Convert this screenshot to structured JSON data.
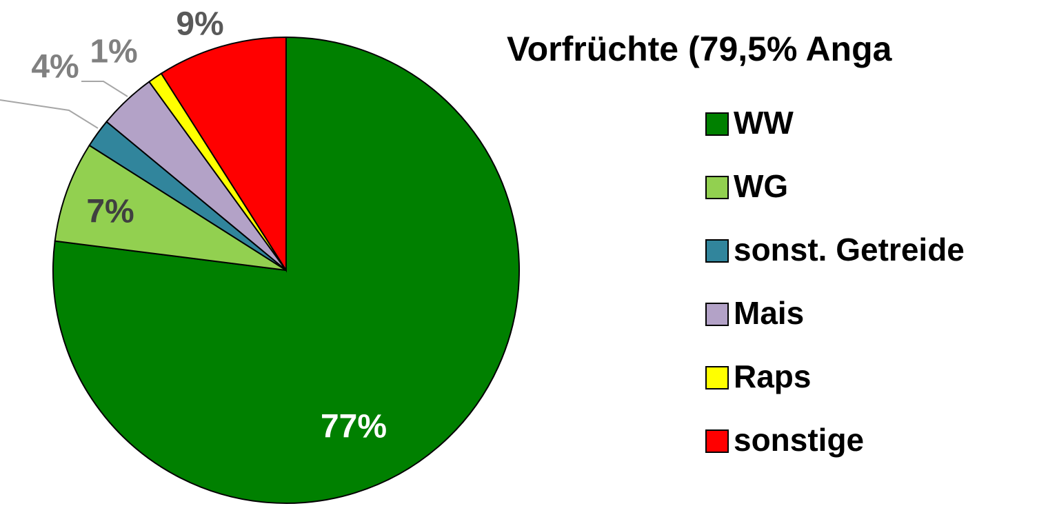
{
  "chart_data": {
    "type": "pie",
    "title": "Vorfrüchte (79,5% Anga",
    "categories": [
      "WW",
      "WG",
      "sonst. Getreide",
      "Mais",
      "Raps",
      "sonstige"
    ],
    "values": [
      77,
      7,
      2,
      4,
      1,
      9
    ],
    "value_labels": [
      "77%",
      "7%",
      null,
      "4%",
      "1%",
      "9%"
    ],
    "colors": [
      "#008000",
      "#92d050",
      "#31859c",
      "#b3a2c7",
      "#ffff00",
      "#ff0000"
    ],
    "legend": "right"
  }
}
